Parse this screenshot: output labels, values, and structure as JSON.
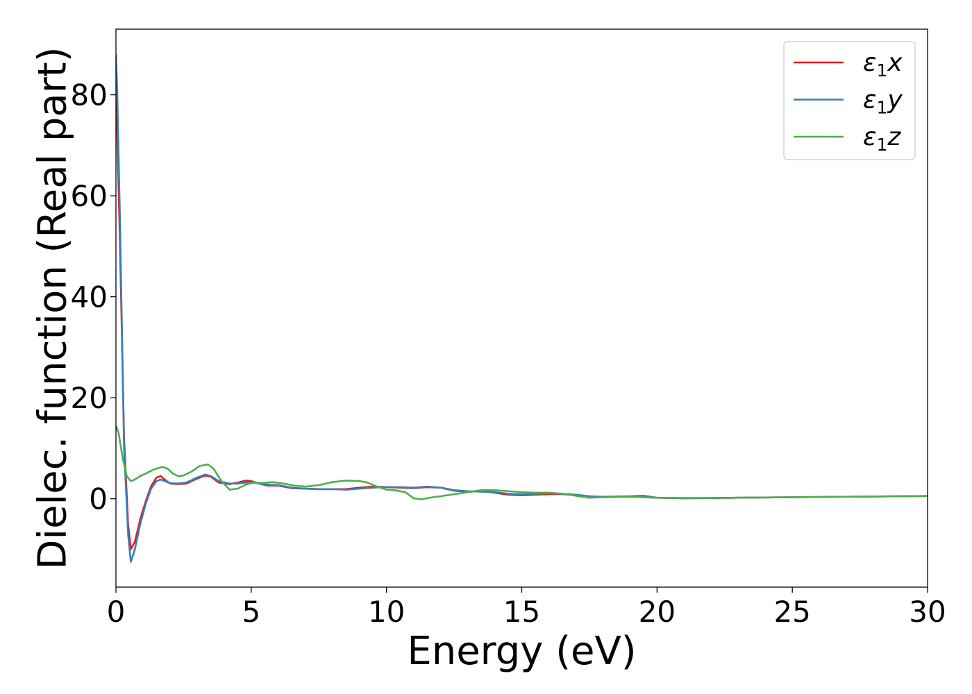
{
  "chart_data": {
    "type": "line",
    "title": "",
    "xlabel": "Energy (eV)",
    "ylabel": "Dielec. function (Real part)",
    "xlim": [
      0,
      30
    ],
    "ylim": [
      -17.5,
      93
    ],
    "xticks": [
      0,
      5,
      10,
      15,
      20,
      25,
      30
    ],
    "yticks": [
      0,
      20,
      40,
      60,
      80
    ],
    "grid": false,
    "legend_position": "top-right",
    "series": [
      {
        "name": "ε1x",
        "legend_base": "ε",
        "legend_sub": "1",
        "legend_var": "x",
        "color": "#e41a1c",
        "x": [
          0,
          0.05,
          0.15,
          0.3,
          0.45,
          0.55,
          0.7,
          0.9,
          1.1,
          1.3,
          1.5,
          1.65,
          1.8,
          2.0,
          2.3,
          2.6,
          3.0,
          3.3,
          3.5,
          3.8,
          4.2,
          4.5,
          4.8,
          5.0,
          5.3,
          5.6,
          6.0,
          6.5,
          7.0,
          7.5,
          8.0,
          8.5,
          9.0,
          9.5,
          10.0,
          10.5,
          11.0,
          11.5,
          12.0,
          12.5,
          13.0,
          13.5,
          14.0,
          14.5,
          15.0,
          15.5,
          16.0,
          16.5,
          17.0,
          17.5,
          18.0,
          18.5,
          19.0,
          19.5,
          20.0,
          21.0,
          22.0,
          23.0,
          24.0,
          25.0,
          26.0,
          27.0,
          28.0,
          29.0,
          30.0
        ],
        "y": [
          79,
          72,
          50,
          12,
          -5,
          -10,
          -8.5,
          -4,
          -0.5,
          2.5,
          4.2,
          4.5,
          3.8,
          3.0,
          2.9,
          3.0,
          4.0,
          4.6,
          4.4,
          3.2,
          2.9,
          3.2,
          3.6,
          3.5,
          3.0,
          2.6,
          2.6,
          2.1,
          2.0,
          1.9,
          1.9,
          1.9,
          2.2,
          2.4,
          2.3,
          2.2,
          2.1,
          2.3,
          2.2,
          1.6,
          1.4,
          1.5,
          1.2,
          0.8,
          0.7,
          0.8,
          0.9,
          0.9,
          0.7,
          0.4,
          0.3,
          0.35,
          0.4,
          0.3,
          0.2,
          0.1,
          0.15,
          0.2,
          0.25,
          0.3,
          0.35,
          0.4,
          0.45,
          0.5,
          0.55
        ]
      },
      {
        "name": "ε1y",
        "legend_base": "ε",
        "legend_sub": "1",
        "legend_var": "y",
        "color": "#377eb8",
        "x": [
          0,
          0.05,
          0.15,
          0.3,
          0.45,
          0.55,
          0.7,
          0.9,
          1.1,
          1.3,
          1.5,
          1.65,
          1.8,
          2.0,
          2.3,
          2.6,
          3.0,
          3.3,
          3.5,
          3.8,
          4.2,
          4.5,
          4.8,
          5.0,
          5.3,
          5.6,
          6.0,
          6.5,
          7.0,
          7.5,
          8.0,
          8.5,
          9.0,
          9.5,
          10.0,
          10.5,
          11.0,
          11.5,
          12.0,
          12.5,
          13.0,
          13.5,
          14.0,
          14.5,
          15.0,
          15.5,
          16.0,
          16.5,
          17.0,
          17.5,
          18.0,
          18.5,
          19.0,
          19.5,
          20.0,
          21.0,
          22.0,
          23.0,
          24.0,
          25.0,
          26.0,
          27.0,
          28.0,
          29.0,
          30.0
        ],
        "y": [
          88,
          80,
          55,
          10,
          -7,
          -12.5,
          -10,
          -5,
          -1,
          2,
          3.5,
          3.8,
          3.5,
          3.1,
          3.0,
          3.2,
          4.2,
          4.8,
          4.5,
          3.5,
          3.0,
          3.0,
          3.2,
          3.3,
          3.0,
          2.8,
          2.7,
          2.2,
          2.0,
          1.9,
          1.9,
          1.8,
          2.0,
          2.2,
          2.3,
          2.3,
          2.2,
          2.4,
          2.2,
          1.7,
          1.5,
          1.4,
          1.3,
          1.0,
          0.9,
          1.0,
          1.1,
          1.0,
          0.8,
          0.5,
          0.4,
          0.45,
          0.5,
          0.6,
          0.2,
          0.1,
          0.15,
          0.2,
          0.25,
          0.3,
          0.35,
          0.4,
          0.45,
          0.5,
          0.55
        ]
      },
      {
        "name": "ε1z",
        "legend_base": "ε",
        "legend_sub": "1",
        "legend_var": "z",
        "color": "#4daf4a",
        "x": [
          0,
          0.1,
          0.25,
          0.4,
          0.55,
          0.7,
          0.9,
          1.1,
          1.4,
          1.7,
          1.9,
          2.1,
          2.3,
          2.5,
          2.8,
          3.1,
          3.4,
          3.6,
          3.9,
          4.2,
          4.5,
          4.8,
          5.1,
          5.4,
          5.8,
          6.2,
          6.6,
          7.0,
          7.5,
          8.0,
          8.5,
          9.0,
          9.3,
          9.7,
          10.0,
          10.3,
          10.7,
          11.0,
          11.3,
          11.7,
          12.0,
          12.5,
          13.0,
          13.5,
          14.0,
          14.5,
          15.0,
          15.5,
          16.0,
          16.5,
          17.0,
          17.5,
          18.0,
          18.5,
          19.0,
          19.5,
          20.0,
          21.0,
          22.0,
          23.0,
          24.0,
          25.0,
          26.0,
          27.0,
          28.0,
          29.0,
          30.0
        ],
        "y": [
          14.5,
          13,
          8,
          4.5,
          3.5,
          3.8,
          4.5,
          5.0,
          5.8,
          6.3,
          6.0,
          5.0,
          4.5,
          4.6,
          5.4,
          6.5,
          6.8,
          6.0,
          3.5,
          1.8,
          2.0,
          2.8,
          3.2,
          3.1,
          3.3,
          3.0,
          2.6,
          2.4,
          2.7,
          3.3,
          3.6,
          3.5,
          3.2,
          2.3,
          1.8,
          1.7,
          1.3,
          0.1,
          -0.1,
          0.3,
          0.5,
          0.9,
          1.3,
          1.7,
          1.7,
          1.5,
          1.3,
          1.2,
          1.2,
          1.0,
          0.6,
          0.2,
          0.3,
          0.35,
          0.4,
          0.3,
          0.2,
          0.15,
          0.15,
          0.2,
          0.25,
          0.3,
          0.35,
          0.4,
          0.45,
          0.5,
          0.55
        ]
      }
    ]
  }
}
